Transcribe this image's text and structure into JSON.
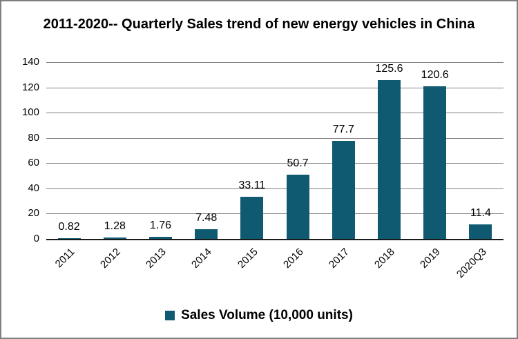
{
  "window": {
    "border_color": "#7f7f7f",
    "background": "#ffffff"
  },
  "chart_data": {
    "type": "bar",
    "title": "2011-2020-- Quarterly Sales trend of new energy vehicles in China",
    "categories": [
      "2011",
      "2012",
      "2013",
      "2014",
      "2015",
      "2016",
      "2017",
      "2018",
      "2019",
      "2020Q3"
    ],
    "values": [
      0.82,
      1.28,
      1.76,
      7.48,
      33.11,
      50.7,
      77.7,
      125.6,
      120.6,
      11.4
    ],
    "value_labels": [
      "0.82",
      "1.28",
      "1.76",
      "7.48",
      "33.11",
      "50.7",
      "77.7",
      "125.6",
      "120.6",
      "11.4"
    ],
    "series_name": "Sales Volume (10,000 units)",
    "xlabel": "",
    "ylabel": "",
    "ylim": [
      0,
      140
    ],
    "yticks": [
      0,
      20,
      40,
      60,
      80,
      100,
      120,
      140
    ],
    "grid": true,
    "legend_position": "bottom",
    "bar_color": "#0f5a70",
    "grid_color": "#808080",
    "axis_color": "#1a1a1a",
    "text_color": "#000000",
    "x_tick_rotation_deg": 45
  }
}
